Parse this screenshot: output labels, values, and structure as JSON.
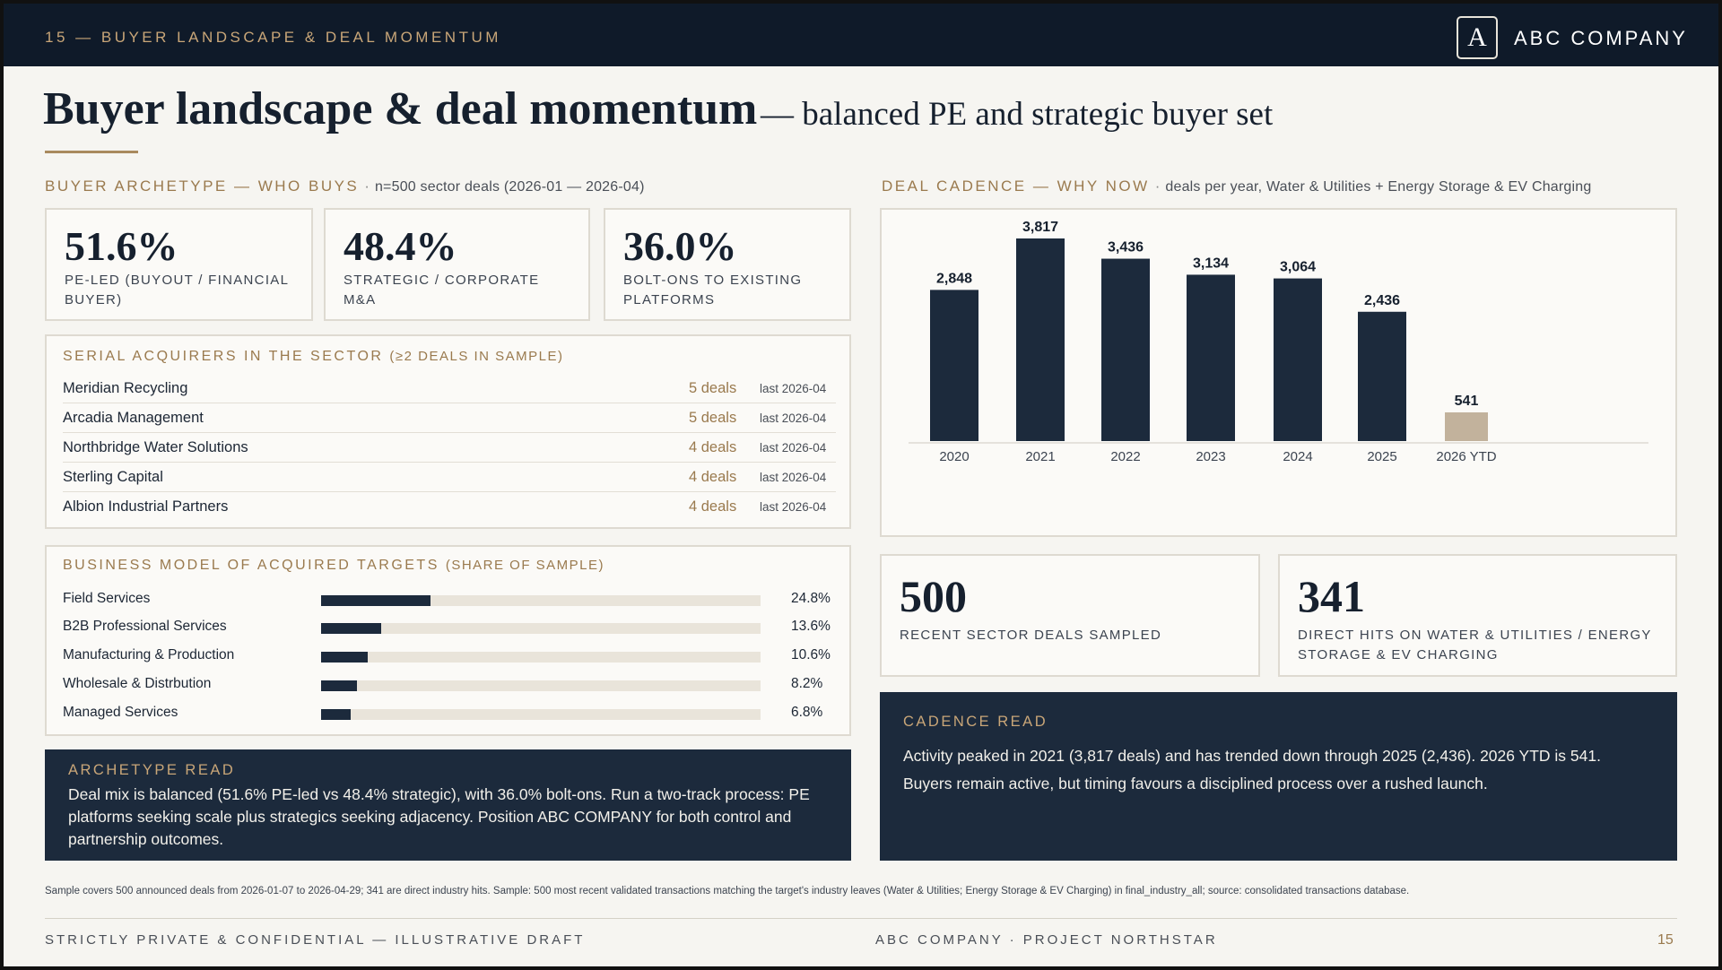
{
  "header": {
    "breadcrumb": "15 — BUYER LANDSCAPE & DEAL MOMENTUM",
    "logo_letter": "A",
    "company": "ABC COMPANY"
  },
  "title": {
    "main": "Buyer landscape & deal momentum",
    "sub": "— balanced PE and strategic buyer set"
  },
  "archetype": {
    "heading": "BUYER ARCHETYPE — WHO BUYS",
    "separator": "·",
    "note": "n=500 sector deals (2026-01 — 2026-04)",
    "kpis": [
      {
        "value": "51.6%",
        "label": "PE-LED (BUYOUT / FINANCIAL BUYER)"
      },
      {
        "value": "48.4%",
        "label": "STRATEGIC / CORPORATE M&A"
      },
      {
        "value": "36.0%",
        "label": "BOLT-ONS TO EXISTING PLATFORMS"
      }
    ]
  },
  "serial_acquirers": {
    "title": "SERIAL ACQUIRERS IN THE SECTOR",
    "title_note": "(≥2 DEALS IN SAMPLE)",
    "rows": [
      {
        "name": "Meridian Recycling",
        "deals": "5 deals",
        "last": "last 2026-04"
      },
      {
        "name": "Arcadia Management",
        "deals": "5 deals",
        "last": "last 2026-04"
      },
      {
        "name": "Northbridge Water Solutions",
        "deals": "4 deals",
        "last": "last 2026-04"
      },
      {
        "name": "Sterling Capital",
        "deals": "4 deals",
        "last": "last 2026-04"
      },
      {
        "name": "Albion Industrial Partners",
        "deals": "4 deals",
        "last": "last 2026-04"
      }
    ]
  },
  "business_model": {
    "title": "BUSINESS MODEL OF ACQUIRED TARGETS",
    "title_note": "(SHARE OF SAMPLE)",
    "rows": [
      {
        "name": "Field Services",
        "pct": 24.8,
        "label": "24.8%"
      },
      {
        "name": "B2B Professional Services",
        "pct": 13.6,
        "label": "13.6%"
      },
      {
        "name": "Manufacturing & Production",
        "pct": 10.6,
        "label": "10.6%"
      },
      {
        "name": "Wholesale & Distrbution",
        "pct": 8.2,
        "label": "8.2%"
      },
      {
        "name": "Managed Services",
        "pct": 6.8,
        "label": "6.8%"
      }
    ]
  },
  "archetype_read": {
    "title": "ARCHETYPE READ",
    "body": "Deal mix is balanced (51.6% PE-led vs 48.4% strategic), with 36.0% bolt-ons. Run a two-track process: PE platforms seeking scale plus strategics seeking adjacency. Position ABC COMPANY for both control and partnership outcomes."
  },
  "cadence": {
    "heading": "DEAL CADENCE — WHY NOW",
    "separator": "·",
    "note": "deals per year, Water & Utilities + Energy Storage & EV Charging"
  },
  "chart_data": {
    "type": "bar",
    "categories": [
      "2020",
      "2021",
      "2022",
      "2023",
      "2024",
      "2025",
      "2026 YTD"
    ],
    "values": [
      2848,
      3817,
      3436,
      3134,
      3064,
      2436,
      541
    ],
    "value_labels": [
      "2,848",
      "3,817",
      "3,436",
      "3,134",
      "3,064",
      "2,436",
      "541"
    ],
    "ylim": [
      0,
      3817
    ],
    "colors": {
      "bar": "#1c2a3c",
      "highlight": "#c2b29c"
    },
    "highlight_index": 6,
    "grid": false
  },
  "cadence_kpis": [
    {
      "value": "500",
      "label": "RECENT SECTOR DEALS SAMPLED"
    },
    {
      "value": "341",
      "label": "DIRECT HITS ON WATER & UTILITIES / ENERGY STORAGE & EV CHARGING"
    }
  ],
  "cadence_read": {
    "title": "CADENCE READ",
    "body": "Activity peaked in 2021 (3,817 deals) and has trended down through 2025 (2,436). 2026 YTD is 541. Buyers remain active, but timing favours a disciplined process over a rushed launch."
  },
  "footer": {
    "footnote": "Sample covers 500 announced deals from 2026-01-07 to 2026-04-29; 341 are direct industry hits. Sample: 500 most recent validated transactions matching the target's industry leaves (Water & Utilities; Energy Storage & EV Charging) in final_industry_all; source: consolidated transactions database.",
    "left": "STRICTLY PRIVATE & CONFIDENTIAL — ILLUSTRATIVE DRAFT",
    "center": "ABC COMPANY · PROJECT NORTHSTAR",
    "page": "15"
  }
}
